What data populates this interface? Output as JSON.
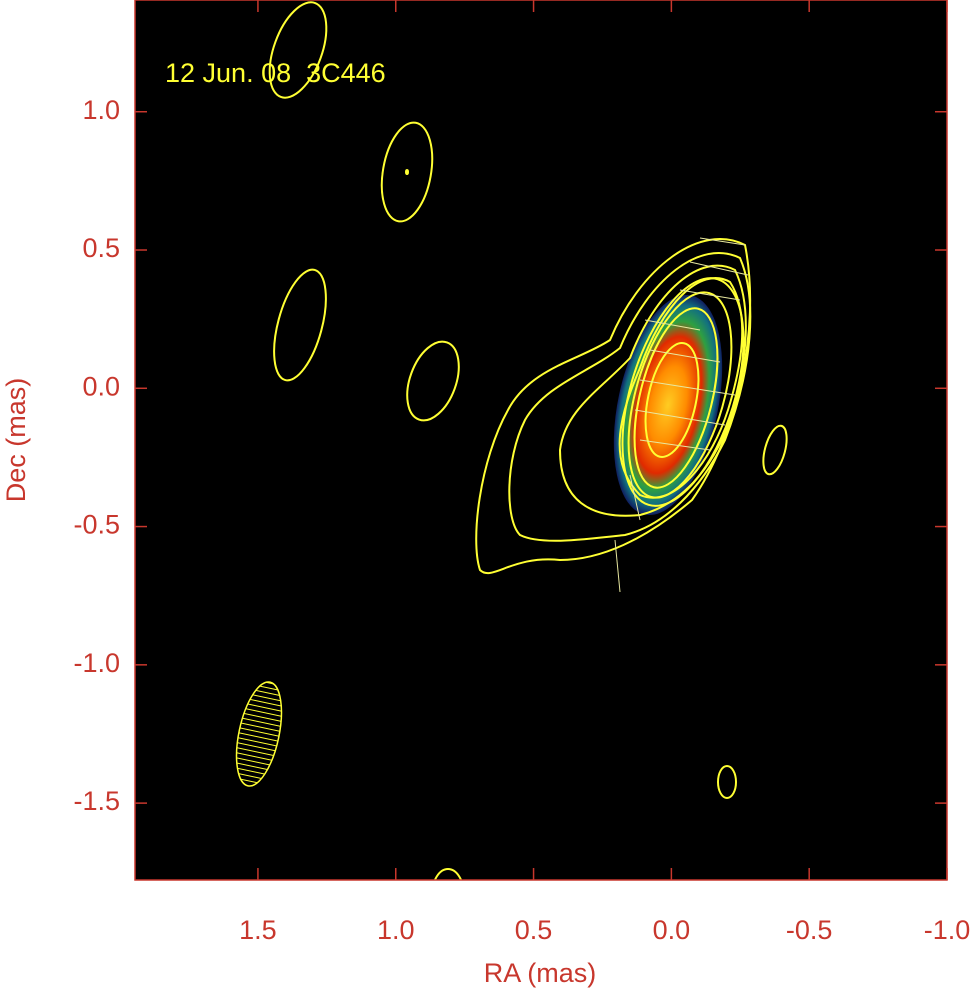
{
  "chart_data": {
    "type": "contour",
    "annotation": "12 Jun. 08  3C446",
    "xlabel": "RA (mas)",
    "ylabel": "Dec (mas)",
    "xlim": [
      1.946,
      -1.0
    ],
    "ylim": [
      -1.778,
      1.404
    ],
    "xticks": [
      1.5,
      {
        "value": 1,
        "label": "1.0"
      },
      0.5,
      {
        "value": 0,
        "label": "0.0"
      },
      -0.5,
      {
        "value": -1,
        "label": "-1.0"
      }
    ],
    "yticks": [
      {
        "value": 1,
        "label": "1.0"
      },
      0.5,
      {
        "value": 0,
        "label": "0.0"
      },
      -0.5,
      {
        "value": -1,
        "label": "-1.0"
      },
      -1.5
    ],
    "axis_color": "#c8372d",
    "annotation_color": "#ffff33"
  }
}
